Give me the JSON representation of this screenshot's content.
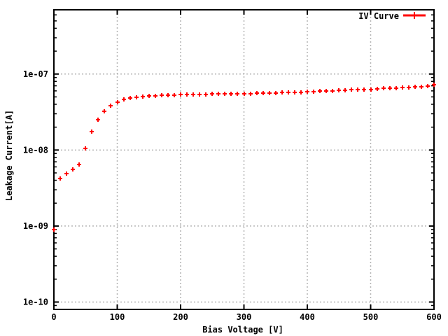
{
  "window": {
    "background": "#ffffff"
  },
  "chart_data": {
    "type": "scatter",
    "title": "",
    "xlabel": "Bias Voltage [V]",
    "ylabel": "Leakage Current[A]",
    "legend_label": "IV Curve",
    "legend_position": "top-right-inside",
    "marker": "plus",
    "grid": true,
    "x_scale": "linear",
    "y_scale": "log",
    "xlim": [
      0,
      600
    ],
    "ylim": [
      8e-11,
      7e-07
    ],
    "x_tick_values": [
      0,
      100,
      200,
      300,
      400,
      500,
      600
    ],
    "x_tick_labels": [
      "0",
      "100",
      "200",
      "300",
      "400",
      "500",
      "600"
    ],
    "x_grid_values": [
      100,
      200,
      300,
      400,
      500
    ],
    "y_tick_values": [
      1e-10,
      1e-09,
      1e-08,
      1e-07
    ],
    "y_tick_labels": [
      "1e-10",
      "1e-09",
      "1e-08",
      "1e-07"
    ],
    "colors": {
      "series": "#ff0000",
      "grid": "#b4b4b4",
      "axis": "#000000"
    },
    "series": [
      {
        "name": "IV Curve",
        "x": [
          0,
          10,
          20,
          30,
          40,
          50,
          60,
          70,
          80,
          90,
          100,
          110,
          120,
          130,
          140,
          150,
          160,
          170,
          180,
          190,
          200,
          210,
          220,
          230,
          240,
          250,
          260,
          270,
          280,
          290,
          300,
          310,
          320,
          330,
          340,
          350,
          360,
          370,
          380,
          390,
          400,
          410,
          420,
          430,
          440,
          450,
          460,
          470,
          480,
          490,
          500,
          510,
          520,
          530,
          540,
          550,
          560,
          570,
          580,
          590,
          600
        ],
        "y": [
          9e-10,
          4.2e-09,
          4.9e-09,
          5.6e-09,
          6.4e-09,
          1.05e-08,
          1.75e-08,
          2.5e-08,
          3.2e-08,
          3.8e-08,
          4.25e-08,
          4.6e-08,
          4.8e-08,
          4.95e-08,
          5.05e-08,
          5.12e-08,
          5.18e-08,
          5.25e-08,
          5.3e-08,
          5.32e-08,
          5.34e-08,
          5.36e-08,
          5.38e-08,
          5.4e-08,
          5.42e-08,
          5.44e-08,
          5.46e-08,
          5.48e-08,
          5.5e-08,
          5.52e-08,
          5.53e-08,
          5.55e-08,
          5.57e-08,
          5.6e-08,
          5.62e-08,
          5.65e-08,
          5.68e-08,
          5.71e-08,
          5.74e-08,
          5.78e-08,
          5.83e-08,
          5.87e-08,
          5.92e-08,
          5.97e-08,
          6.02e-08,
          6.08e-08,
          6.14e-08,
          6.2e-08,
          6.24e-08,
          6.28e-08,
          6.3e-08,
          6.35e-08,
          6.45e-08,
          6.5e-08,
          6.53e-08,
          6.58e-08,
          6.63e-08,
          6.72e-08,
          6.8e-08,
          6.92e-08,
          7.28e-08
        ]
      }
    ]
  }
}
